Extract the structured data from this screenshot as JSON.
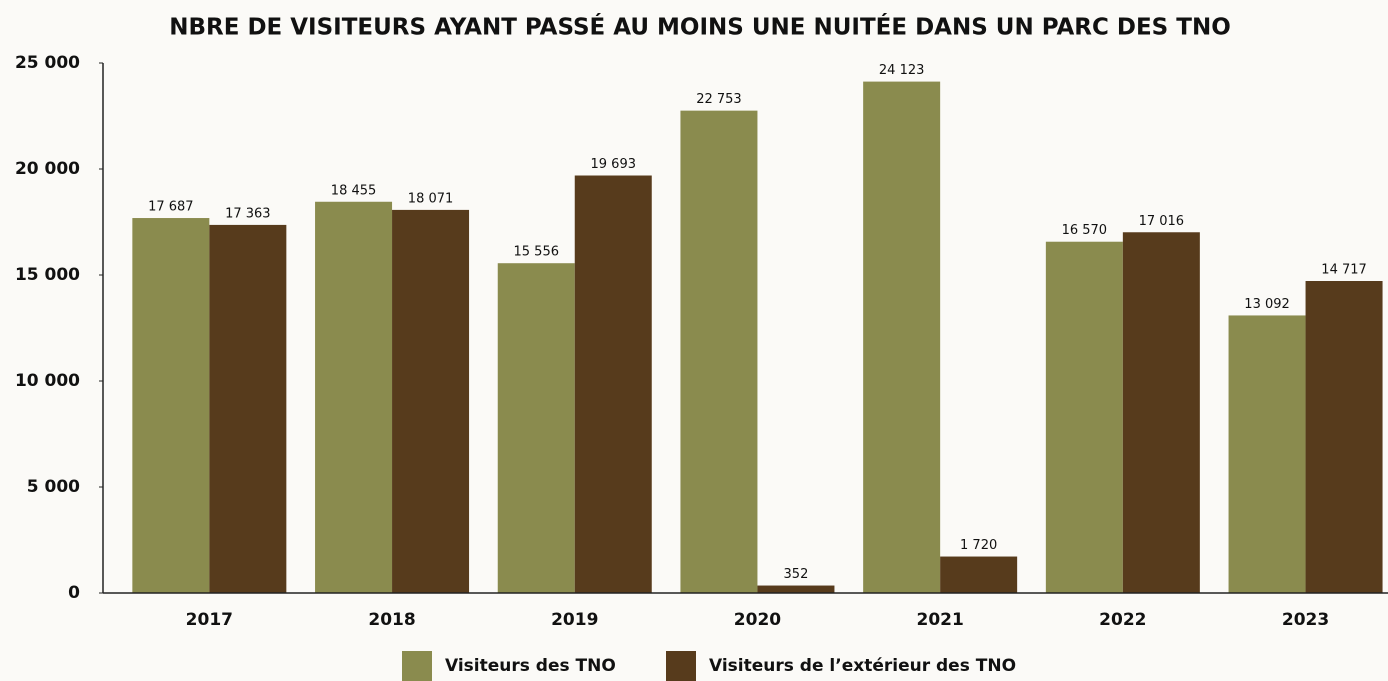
{
  "chart_data": {
    "type": "bar",
    "title": "NBRE DE VISITEURS AYANT PASSÉ AU MOINS UNE NUITÉE DANS UN PARC DES TNO",
    "categories": [
      "2017",
      "2018",
      "2019",
      "2020",
      "2021",
      "2022",
      "2023"
    ],
    "series": [
      {
        "name": "Visiteurs des TNO",
        "color": "#8a8b4e",
        "values": [
          17687,
          18455,
          15556,
          22753,
          24123,
          16570,
          13092
        ],
        "value_labels": [
          "17 687",
          "18 455",
          "15 556",
          "22 753",
          "24 123",
          "16 570",
          "13 092"
        ]
      },
      {
        "name": "Visiteurs de l’extérieur des TNO",
        "color": "#573b1c",
        "values": [
          17363,
          18071,
          19693,
          352,
          1720,
          17016,
          14717
        ],
        "value_labels": [
          "17 363",
          "18 071",
          "19 693",
          "352",
          "1 720",
          "17 016",
          "14 717"
        ]
      }
    ],
    "ylim": [
      0,
      25000
    ],
    "yticks": [
      0,
      {
        "value": 5000,
        "label": "5 000"
      },
      {
        "value": 10000,
        "label": "10 000"
      },
      {
        "value": 15000,
        "label": "15 000"
      },
      {
        "value": 20000,
        "label": "20 000"
      },
      {
        "value": 25000,
        "label": "25 000"
      }
    ],
    "grid": false,
    "legend": "bottom"
  }
}
